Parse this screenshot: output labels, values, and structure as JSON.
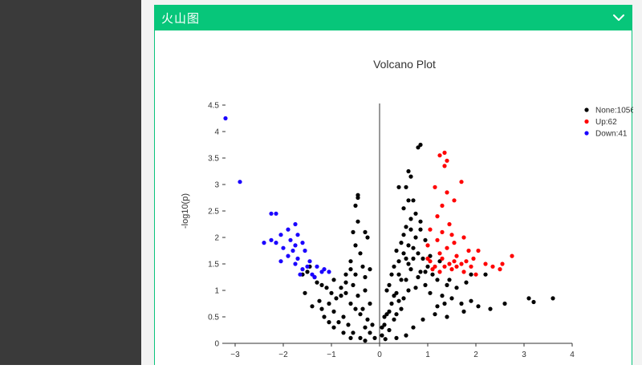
{
  "panel": {
    "title": "火山图",
    "collapse_icon": "chevron-down-icon"
  },
  "colors": {
    "sidebar_bg": "#3a3a3a",
    "header_bg": "#07c67a",
    "border": "#0ac47c",
    "none": "#000000",
    "up": "#ff0000",
    "down": "#1a00ff"
  },
  "chart_data": {
    "type": "scatter",
    "title": "Volcano Plot",
    "xlabel": "",
    "ylabel": "-log10(p)",
    "xlim": [
      -3.2,
      4.0
    ],
    "ylim": [
      0,
      4.5
    ],
    "xticks": [
      -3,
      -2,
      -1,
      0,
      1,
      2,
      3,
      4
    ],
    "yticks": [
      0,
      0.5,
      1,
      1.5,
      2,
      2.5,
      3,
      3.5,
      4,
      4.5
    ],
    "legend_position": "top-right",
    "series": [
      {
        "name": "None:1056",
        "color": "#000000",
        "points": [
          [
            0.85,
            3.75
          ],
          [
            0.8,
            3.7
          ],
          [
            0.6,
            3.25
          ],
          [
            0.65,
            3.15
          ],
          [
            0.55,
            2.95
          ],
          [
            0.4,
            2.95
          ],
          [
            0.7,
            2.7
          ],
          [
            0.6,
            2.7
          ],
          [
            0.5,
            2.55
          ],
          [
            0.75,
            2.45
          ],
          [
            0.85,
            2.3
          ],
          [
            0.55,
            2.2
          ],
          [
            0.65,
            2.15
          ],
          [
            0.5,
            2.05
          ],
          [
            0.45,
            1.9
          ],
          [
            0.7,
            1.8
          ],
          [
            0.35,
            1.75
          ],
          [
            0.8,
            1.7
          ],
          [
            0.9,
            1.6
          ],
          [
            0.6,
            1.5
          ],
          [
            0.3,
            1.45
          ],
          [
            0.85,
            1.35
          ],
          [
            0.4,
            1.3
          ],
          [
            0.55,
            1.2
          ],
          [
            0.2,
            1.1
          ],
          [
            0.75,
            1.05
          ],
          [
            0.35,
            0.95
          ],
          [
            0.5,
            0.85
          ],
          [
            0.25,
            0.75
          ],
          [
            0.45,
            0.65
          ],
          [
            0.15,
            0.55
          ],
          [
            0.3,
            0.45
          ],
          [
            0.1,
            0.35
          ],
          [
            0.2,
            0.25
          ],
          [
            0.05,
            0.15
          ],
          [
            0.12,
            0.08
          ],
          [
            -0.1,
            0.1
          ],
          [
            -0.2,
            0.2
          ],
          [
            -0.3,
            0.3
          ],
          [
            -0.25,
            0.45
          ],
          [
            -0.4,
            0.55
          ],
          [
            -0.5,
            0.65
          ],
          [
            -0.6,
            0.75
          ],
          [
            -0.45,
            0.9
          ],
          [
            -0.3,
            1.0
          ],
          [
            -0.55,
            1.1
          ],
          [
            -0.7,
            1.15
          ],
          [
            -0.5,
            1.3
          ],
          [
            -0.35,
            1.45
          ],
          [
            -0.6,
            1.55
          ],
          [
            -0.4,
            1.7
          ],
          [
            -0.5,
            1.85
          ],
          [
            -0.25,
            2.0
          ],
          [
            -0.55,
            2.1
          ],
          [
            -0.45,
            2.3
          ],
          [
            -0.5,
            2.6
          ],
          [
            -0.45,
            2.75
          ],
          [
            -0.45,
            2.8
          ],
          [
            -0.3,
            2.1
          ],
          [
            -0.2,
            1.4
          ],
          [
            -0.8,
            0.9
          ],
          [
            -0.9,
            0.85
          ],
          [
            -1.0,
            0.95
          ],
          [
            -1.1,
            1.05
          ],
          [
            -1.2,
            1.1
          ],
          [
            -1.3,
            1.15
          ],
          [
            -1.05,
            0.75
          ],
          [
            -0.95,
            0.6
          ],
          [
            -0.75,
            0.5
          ],
          [
            -0.85,
            0.4
          ],
          [
            -0.65,
            0.35
          ],
          [
            -0.55,
            0.2
          ],
          [
            -0.4,
            0.1
          ],
          [
            -1.15,
            0.5
          ],
          [
            -1.25,
            0.8
          ],
          [
            -0.95,
            1.2
          ],
          [
            -1.35,
            1.25
          ],
          [
            -1.5,
            1.35
          ],
          [
            -1.45,
            1.45
          ],
          [
            -0.7,
            0.95
          ],
          [
            1.0,
            1.45
          ],
          [
            1.1,
            1.3
          ],
          [
            1.2,
            1.2
          ],
          [
            0.95,
            1.1
          ],
          [
            1.05,
            0.95
          ],
          [
            1.3,
            0.9
          ],
          [
            1.5,
            0.85
          ],
          [
            1.7,
            0.75
          ],
          [
            1.9,
            0.8
          ],
          [
            1.6,
            1.05
          ],
          [
            1.8,
            1.15
          ],
          [
            1.4,
            1.1
          ],
          [
            2.05,
            0.7
          ],
          [
            2.3,
            0.65
          ],
          [
            1.75,
            0.6
          ],
          [
            1.4,
            0.5
          ],
          [
            1.15,
            0.55
          ],
          [
            0.9,
            0.45
          ],
          [
            0.7,
            0.3
          ],
          [
            0.55,
            0.15
          ],
          [
            0.35,
            0.1
          ],
          [
            2.6,
            0.75
          ],
          [
            3.1,
            0.85
          ],
          [
            3.2,
            0.78
          ],
          [
            3.6,
            0.85
          ],
          [
            1.9,
            1.3
          ],
          [
            2.2,
            1.3
          ],
          [
            1.25,
            1.55
          ],
          [
            1.05,
            1.65
          ],
          [
            1.35,
            0.75
          ],
          [
            0.95,
            1.95
          ],
          [
            0.85,
            2.15
          ],
          [
            0.65,
            2.35
          ],
          [
            0.75,
            2.0
          ],
          [
            0.6,
            1.85
          ],
          [
            0.7,
            1.6
          ],
          [
            0.4,
            1.55
          ],
          [
            0.45,
            1.2
          ],
          [
            0.6,
            1.0
          ],
          [
            0.3,
            0.9
          ],
          [
            0.4,
            0.8
          ],
          [
            0.2,
            0.6
          ],
          [
            0.35,
            0.55
          ],
          [
            -0.15,
            0.35
          ],
          [
            -0.35,
            0.65
          ],
          [
            -0.2,
            0.75
          ],
          [
            -0.3,
            1.25
          ],
          [
            -0.6,
            1.4
          ],
          [
            -0.7,
            1.3
          ],
          [
            -0.8,
            1.05
          ],
          [
            -0.95,
            0.3
          ],
          [
            -0.75,
            0.2
          ],
          [
            -0.6,
            0.1
          ],
          [
            -0.3,
            0.05
          ],
          [
            -1.4,
            0.7
          ],
          [
            -1.55,
            0.95
          ],
          [
            -1.6,
            1.3
          ],
          [
            -1.2,
            0.65
          ],
          [
            -1.05,
            0.4
          ],
          [
            0.05,
            0.3
          ],
          [
            0.1,
            0.5
          ],
          [
            0.25,
            1.3
          ],
          [
            0.15,
            1.0
          ],
          [
            0.5,
            1.7
          ],
          [
            0.55,
            1.6
          ],
          [
            0.65,
            1.4
          ],
          [
            0.8,
            1.25
          ],
          [
            0.95,
            1.35
          ],
          [
            1.2,
            0.7
          ],
          [
            1.45,
            1.2
          ]
        ]
      },
      {
        "name": "Up:62",
        "color": "#ff0000",
        "points": [
          [
            1.25,
            3.55
          ],
          [
            1.35,
            3.6
          ],
          [
            1.4,
            3.45
          ],
          [
            1.35,
            3.35
          ],
          [
            1.15,
            2.95
          ],
          [
            1.4,
            2.85
          ],
          [
            1.7,
            3.05
          ],
          [
            1.55,
            2.7
          ],
          [
            1.3,
            2.6
          ],
          [
            1.2,
            2.4
          ],
          [
            1.45,
            2.25
          ],
          [
            1.05,
            2.15
          ],
          [
            1.3,
            2.1
          ],
          [
            1.5,
            2.05
          ],
          [
            1.75,
            2.0
          ],
          [
            1.2,
            1.95
          ],
          [
            1.55,
            1.9
          ],
          [
            1.0,
            1.85
          ],
          [
            1.4,
            1.8
          ],
          [
            1.85,
            1.75
          ],
          [
            2.05,
            1.75
          ],
          [
            1.25,
            1.7
          ],
          [
            1.6,
            1.65
          ],
          [
            1.3,
            1.6
          ],
          [
            1.95,
            1.6
          ],
          [
            1.05,
            1.55
          ],
          [
            1.45,
            1.5
          ],
          [
            1.7,
            1.5
          ],
          [
            2.2,
            1.5
          ],
          [
            1.15,
            1.45
          ],
          [
            1.35,
            1.45
          ],
          [
            1.6,
            1.45
          ],
          [
            1.9,
            1.45
          ],
          [
            2.35,
            1.45
          ],
          [
            1.1,
            1.4
          ],
          [
            1.5,
            1.4
          ],
          [
            1.75,
            1.35
          ],
          [
            2.5,
            1.4
          ],
          [
            1.25,
            1.35
          ],
          [
            2.0,
            1.3
          ],
          [
            2.75,
            1.65
          ],
          [
            2.55,
            1.5
          ],
          [
            1.55,
            1.55
          ],
          [
            1.8,
            1.55
          ],
          [
            1.0,
            1.6
          ]
        ]
      },
      {
        "name": "Down:41",
        "color": "#1a00ff",
        "points": [
          [
            -3.2,
            4.25
          ],
          [
            -2.9,
            3.05
          ],
          [
            -2.25,
            2.45
          ],
          [
            -2.15,
            2.45
          ],
          [
            -1.75,
            2.25
          ],
          [
            -1.9,
            2.15
          ],
          [
            -1.7,
            2.05
          ],
          [
            -2.05,
            2.05
          ],
          [
            -2.25,
            1.95
          ],
          [
            -2.4,
            1.9
          ],
          [
            -2.15,
            1.9
          ],
          [
            -1.85,
            1.95
          ],
          [
            -1.6,
            1.9
          ],
          [
            -1.75,
            1.85
          ],
          [
            -2.0,
            1.8
          ],
          [
            -1.8,
            1.75
          ],
          [
            -1.55,
            1.75
          ],
          [
            -1.9,
            1.65
          ],
          [
            -1.7,
            1.6
          ],
          [
            -1.45,
            1.55
          ],
          [
            -1.75,
            1.5
          ],
          [
            -1.5,
            1.45
          ],
          [
            -1.3,
            1.45
          ],
          [
            -1.15,
            1.4
          ],
          [
            -1.6,
            1.4
          ],
          [
            -1.2,
            1.35
          ],
          [
            -1.4,
            1.3
          ],
          [
            -1.05,
            1.35
          ],
          [
            -1.35,
            1.25
          ],
          [
            -2.05,
            1.55
          ],
          [
            -1.65,
            1.3
          ]
        ]
      }
    ]
  }
}
